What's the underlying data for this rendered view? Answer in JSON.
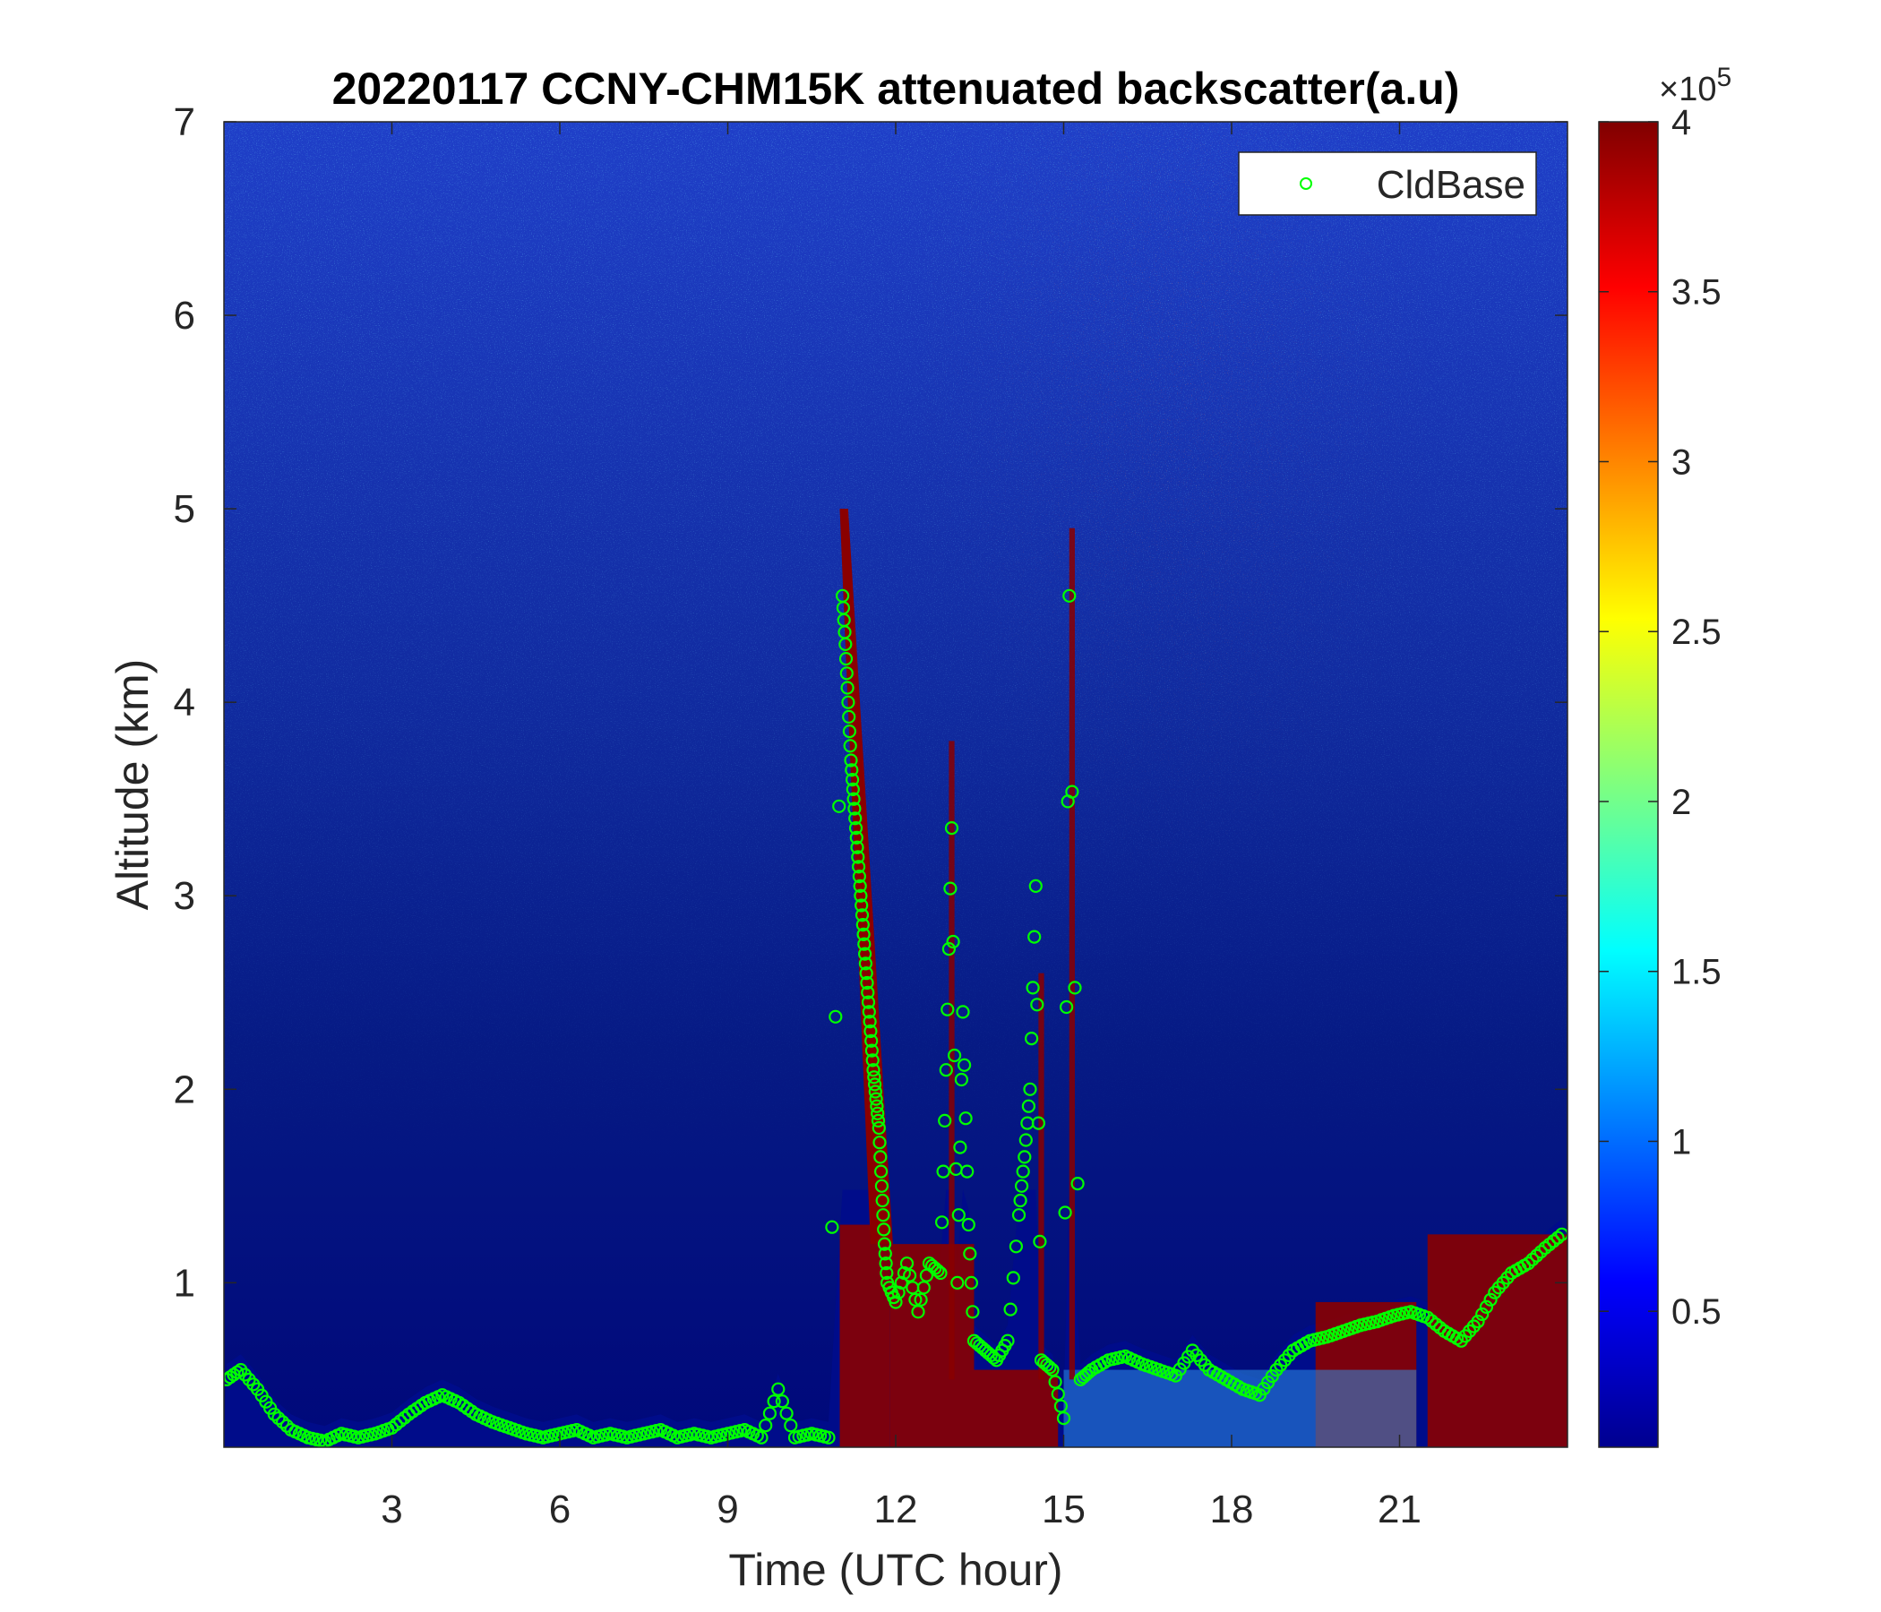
{
  "chart_data": {
    "type": "heatmap",
    "title": "20220117 CCNY-CHM15K attenuated backscatter(a.u)",
    "xlabel": "Time (UTC hour)",
    "ylabel": "Altitude (km)",
    "xlim": [
      0,
      24
    ],
    "ylim": [
      0.15,
      7
    ],
    "x_ticks": [
      3,
      6,
      9,
      12,
      15,
      18,
      21
    ],
    "y_ticks": [
      1,
      2,
      3,
      4,
      5,
      6,
      7
    ],
    "grid": false,
    "colormap": "jet",
    "colorbar": {
      "range": [
        0.1,
        4
      ],
      "ticks": [
        0.5,
        1,
        1.5,
        2,
        2.5,
        3,
        3.5,
        4
      ],
      "multiplier": "×10",
      "exponent": "5"
    },
    "legend": {
      "position": "top-right",
      "entries": [
        {
          "label": "CldBase",
          "color": "#00ff00",
          "marker": "o"
        }
      ]
    },
    "series": [
      {
        "name": "CldBase",
        "marker": "circle-open",
        "color": "#00ff00",
        "points": [
          [
            0.05,
            0.5
          ],
          [
            0.3,
            0.55
          ],
          [
            0.6,
            0.45
          ],
          [
            0.9,
            0.32
          ],
          [
            1.2,
            0.24
          ],
          [
            1.5,
            0.2
          ],
          [
            1.8,
            0.18
          ],
          [
            2.1,
            0.22
          ],
          [
            2.4,
            0.2
          ],
          [
            2.7,
            0.22
          ],
          [
            3.0,
            0.25
          ],
          [
            3.3,
            0.32
          ],
          [
            3.6,
            0.38
          ],
          [
            3.9,
            0.42
          ],
          [
            4.2,
            0.38
          ],
          [
            4.5,
            0.32
          ],
          [
            4.8,
            0.28
          ],
          [
            5.1,
            0.25
          ],
          [
            5.4,
            0.22
          ],
          [
            5.7,
            0.2
          ],
          [
            6.0,
            0.22
          ],
          [
            6.3,
            0.24
          ],
          [
            6.6,
            0.2
          ],
          [
            6.9,
            0.22
          ],
          [
            7.2,
            0.2
          ],
          [
            7.5,
            0.22
          ],
          [
            7.8,
            0.24
          ],
          [
            8.1,
            0.2
          ],
          [
            8.4,
            0.22
          ],
          [
            8.7,
            0.2
          ],
          [
            9.0,
            0.22
          ],
          [
            9.3,
            0.24
          ],
          [
            9.6,
            0.2
          ],
          [
            9.9,
            0.45
          ],
          [
            10.2,
            0.2
          ],
          [
            10.5,
            0.22
          ],
          [
            10.8,
            0.2
          ],
          [
            11.05,
            4.55
          ],
          [
            11.1,
            4.3
          ],
          [
            11.15,
            4.0
          ],
          [
            11.2,
            3.7
          ],
          [
            11.25,
            3.5
          ],
          [
            11.3,
            3.3
          ],
          [
            11.35,
            3.1
          ],
          [
            11.4,
            2.9
          ],
          [
            11.45,
            2.7
          ],
          [
            11.5,
            2.5
          ],
          [
            11.55,
            2.3
          ],
          [
            11.6,
            2.1
          ],
          [
            11.65,
            1.95
          ],
          [
            11.7,
            1.8
          ],
          [
            11.75,
            1.5
          ],
          [
            11.8,
            1.2
          ],
          [
            11.85,
            1.0
          ],
          [
            12.0,
            0.9
          ],
          [
            12.2,
            1.1
          ],
          [
            12.4,
            0.85
          ],
          [
            12.6,
            1.1
          ],
          [
            12.8,
            1.05
          ],
          [
            12.9,
            2.1
          ],
          [
            13.0,
            3.35
          ],
          [
            13.1,
            1.0
          ],
          [
            13.2,
            2.4
          ],
          [
            13.3,
            1.3
          ],
          [
            13.4,
            0.7
          ],
          [
            13.6,
            0.65
          ],
          [
            13.8,
            0.6
          ],
          [
            14.0,
            0.7
          ],
          [
            14.2,
            1.35
          ],
          [
            14.3,
            1.65
          ],
          [
            14.4,
            2.0
          ],
          [
            14.5,
            3.05
          ],
          [
            14.6,
            0.6
          ],
          [
            14.8,
            0.55
          ],
          [
            15.0,
            0.3
          ],
          [
            15.1,
            4.55
          ],
          [
            15.3,
            0.5
          ],
          [
            15.5,
            0.55
          ],
          [
            15.8,
            0.6
          ],
          [
            16.1,
            0.62
          ],
          [
            16.4,
            0.58
          ],
          [
            16.7,
            0.55
          ],
          [
            17.0,
            0.52
          ],
          [
            17.3,
            0.65
          ],
          [
            17.6,
            0.55
          ],
          [
            17.9,
            0.5
          ],
          [
            18.2,
            0.45
          ],
          [
            18.5,
            0.42
          ],
          [
            18.8,
            0.55
          ],
          [
            19.1,
            0.65
          ],
          [
            19.4,
            0.7
          ],
          [
            19.7,
            0.72
          ],
          [
            20.0,
            0.75
          ],
          [
            20.3,
            0.78
          ],
          [
            20.6,
            0.8
          ],
          [
            20.9,
            0.83
          ],
          [
            21.2,
            0.85
          ],
          [
            21.5,
            0.82
          ],
          [
            21.8,
            0.75
          ],
          [
            22.1,
            0.7
          ],
          [
            22.4,
            0.8
          ],
          [
            22.7,
            0.95
          ],
          [
            23.0,
            1.05
          ],
          [
            23.3,
            1.1
          ],
          [
            23.6,
            1.18
          ],
          [
            23.9,
            1.25
          ]
        ]
      }
    ]
  }
}
